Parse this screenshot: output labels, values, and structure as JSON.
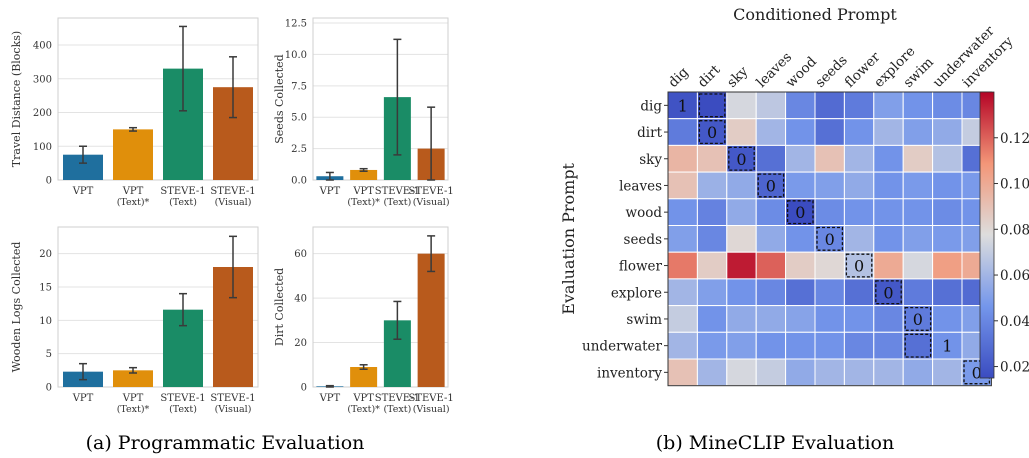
{
  "captions": {
    "left": "(a) Programmatic Evaluation",
    "right": "(b) MineCLIP Evaluation"
  },
  "colors": {
    "VPT": "#1f6f9e",
    "VPT (Text)*": "#e08f0b",
    "STEVE-1 (Text)": "#1a8c66",
    "STEVE-1 (Visual)": "#b85a1c",
    "cmap_low": "#3b4cc0",
    "cmap_mid": "#dddddd",
    "cmap_high": "#b40426"
  },
  "chart_data": [
    {
      "type": "bar",
      "panel": "travel",
      "categories": [
        [
          "VPT"
        ],
        [
          "VPT",
          "(Text)*"
        ],
        [
          "STEVE-1",
          "(Text)"
        ],
        [
          "STEVE-1",
          "(Visual)"
        ]
      ],
      "values": [
        75,
        150,
        330,
        275
      ],
      "errors": [
        25,
        5,
        125,
        90
      ],
      "ylabel": "Travel Distance (Blocks)",
      "ylim": [
        0,
        480
      ],
      "yticks": [
        0,
        100,
        200,
        300,
        400
      ],
      "ytick_labels": [
        "0",
        "100",
        "200",
        "300",
        "400"
      ]
    },
    {
      "type": "bar",
      "panel": "seeds",
      "categories": [
        [
          "VPT"
        ],
        [
          "VPT",
          "(Text)*"
        ],
        [
          "STEVE-1",
          "(Text)"
        ],
        [
          "STEVE-1",
          "(Visual)"
        ]
      ],
      "values": [
        0.3,
        0.8,
        6.6,
        2.5
      ],
      "errors": [
        0.3,
        0.1,
        4.6,
        3.3
      ],
      "ylabel": "Seeds Collected",
      "ylim": [
        0,
        12.9
      ],
      "yticks": [
        0,
        2.5,
        5,
        7.5,
        10,
        12.5
      ],
      "ytick_labels": [
        "0.0",
        "2.5",
        "5.0",
        "7.5",
        "10.0",
        "12.5"
      ]
    },
    {
      "type": "bar",
      "panel": "wood",
      "categories": [
        [
          "VPT"
        ],
        [
          "VPT",
          "(Text)*"
        ],
        [
          "STEVE-1",
          "(Text)"
        ],
        [
          "STEVE-1",
          "(Visual)"
        ]
      ],
      "values": [
        2.3,
        2.5,
        11.6,
        18
      ],
      "errors": [
        1.2,
        0.4,
        2.4,
        4.6
      ],
      "ylabel": "Wooden Logs Collected",
      "ylim": [
        0,
        24
      ],
      "yticks": [
        0,
        5,
        10,
        15,
        20
      ],
      "ytick_labels": [
        "0",
        "5",
        "10",
        "15",
        "20"
      ]
    },
    {
      "type": "bar",
      "panel": "dirt",
      "categories": [
        [
          "VPT"
        ],
        [
          "VPT",
          "(Text)*"
        ],
        [
          "STEVE-1",
          "(Text)"
        ],
        [
          "STEVE-1",
          "(Visual)"
        ]
      ],
      "values": [
        0.3,
        9,
        30,
        60
      ],
      "errors": [
        0.3,
        1,
        8.5,
        8
      ],
      "ylabel": "Dirt Collected",
      "ylim": [
        0,
        72
      ],
      "yticks": [
        0,
        20,
        40,
        60
      ],
      "ytick_labels": [
        "0",
        "20",
        "40",
        "60"
      ]
    },
    {
      "type": "heatmap",
      "panel": "mineclip",
      "title": "Conditioned Prompt",
      "ylabel": "Evaluation Prompt",
      "x_labels": [
        "dig",
        "dirt",
        "sky",
        "leaves",
        "wood",
        "seeds",
        "flower",
        "explore",
        "swim",
        "underwater",
        "inventory"
      ],
      "y_labels": [
        "dig",
        "dirt",
        "sky",
        "leaves",
        "wood",
        "seeds",
        "flower",
        "explore",
        "swim",
        "underwater",
        "inventory"
      ],
      "values": [
        [
          0.018,
          0.015,
          0.075,
          0.068,
          0.04,
          0.028,
          0.035,
          0.05,
          0.045,
          0.042,
          0.04
        ],
        [
          0.035,
          0.02,
          0.085,
          0.06,
          0.045,
          0.03,
          0.045,
          0.06,
          0.05,
          0.055,
          0.07
        ],
        [
          0.095,
          0.09,
          0.02,
          0.03,
          0.06,
          0.09,
          0.06,
          0.045,
          0.085,
          0.065,
          0.03
        ],
        [
          0.09,
          0.058,
          0.055,
          0.025,
          0.048,
          0.05,
          0.055,
          0.045,
          0.048,
          0.045,
          0.048
        ],
        [
          0.045,
          0.038,
          0.055,
          0.042,
          0.015,
          0.042,
          0.045,
          0.045,
          0.045,
          0.042,
          0.045
        ],
        [
          0.05,
          0.04,
          0.08,
          0.055,
          0.045,
          0.04,
          0.06,
          0.045,
          0.05,
          0.048,
          0.05
        ],
        [
          0.115,
          0.085,
          0.135,
          0.12,
          0.085,
          0.08,
          0.065,
          0.1,
          0.075,
          0.105,
          0.1
        ],
        [
          0.06,
          0.05,
          0.045,
          0.04,
          0.03,
          0.04,
          0.03,
          0.02,
          0.035,
          0.03,
          0.028
        ],
        [
          0.07,
          0.045,
          0.055,
          0.055,
          0.052,
          0.045,
          0.045,
          0.04,
          0.035,
          0.045,
          0.05
        ],
        [
          0.06,
          0.048,
          0.05,
          0.045,
          0.045,
          0.045,
          0.04,
          0.04,
          0.03,
          0.045,
          0.055
        ],
        [
          0.09,
          0.06,
          0.075,
          0.07,
          0.055,
          0.06,
          0.06,
          0.06,
          0.055,
          0.06,
          0.048
        ]
      ],
      "cell_labels": [
        [
          0,
          0,
          "1"
        ],
        [
          1,
          1,
          "0"
        ],
        [
          2,
          2,
          "0"
        ],
        [
          3,
          3,
          "0"
        ],
        [
          4,
          4,
          "0"
        ],
        [
          5,
          5,
          "0"
        ],
        [
          6,
          6,
          "0"
        ],
        [
          7,
          7,
          "0"
        ],
        [
          8,
          8,
          "0"
        ],
        [
          9,
          9,
          "1"
        ],
        [
          10,
          10,
          "0"
        ]
      ],
      "dashed_cells": [
        [
          0,
          1
        ],
        [
          1,
          1
        ],
        [
          2,
          2
        ],
        [
          3,
          3
        ],
        [
          4,
          4
        ],
        [
          5,
          5
        ],
        [
          6,
          6
        ],
        [
          7,
          7
        ],
        [
          8,
          8
        ],
        [
          9,
          8
        ],
        [
          10,
          10
        ]
      ],
      "colorbar": {
        "range": [
          0.015,
          0.14
        ],
        "ticks": [
          0.02,
          0.04,
          0.06,
          0.08,
          0.1,
          0.12
        ],
        "tick_labels": [
          "0.02",
          "0.04",
          "0.06",
          "0.08",
          "0.10",
          "0.12"
        ]
      }
    }
  ]
}
